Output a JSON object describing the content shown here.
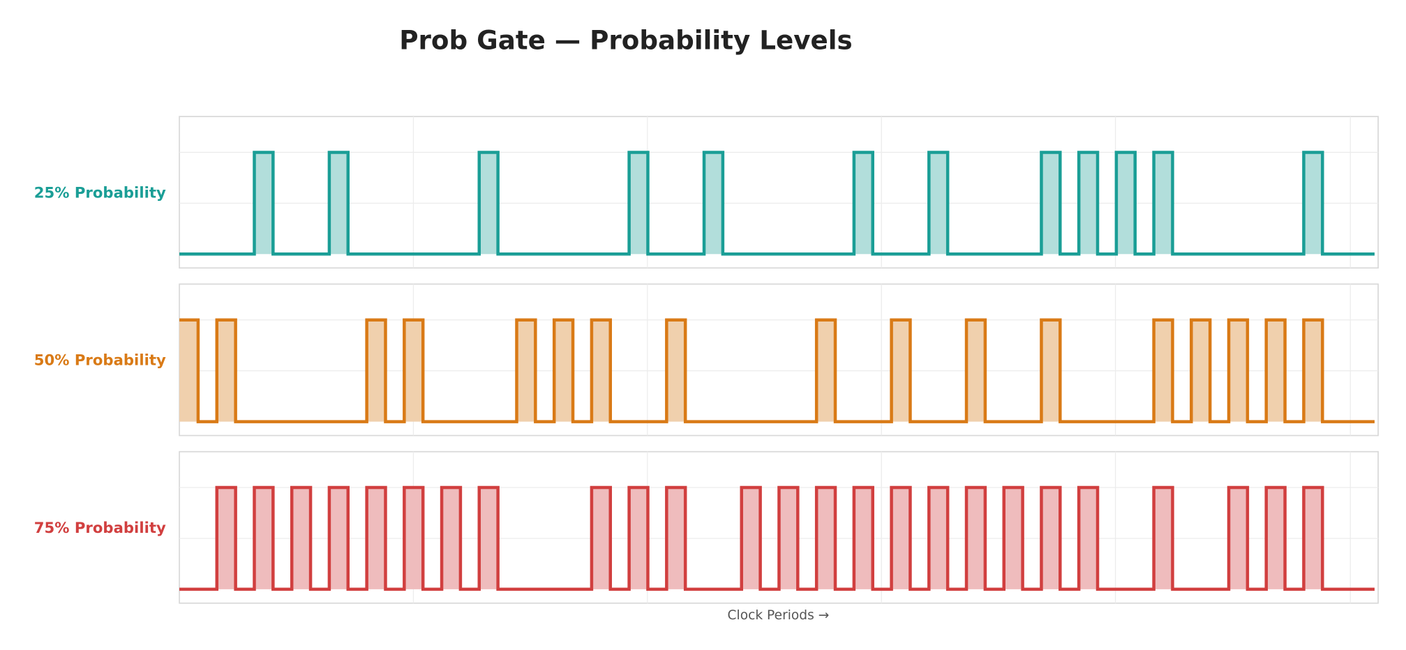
{
  "chart_data": {
    "type": "line",
    "step": true,
    "title": "Prob Gate — Probability Levels",
    "xlabel": "Clock Periods →",
    "periods": 32,
    "grid": true,
    "series": [
      {
        "name": "25% Probability",
        "color": "#1a9e96",
        "fill": "#b2dedb",
        "values": [
          0,
          0,
          1,
          0,
          1,
          0,
          0,
          0,
          1,
          0,
          0,
          0,
          1,
          0,
          1,
          0,
          0,
          0,
          1,
          0,
          1,
          0,
          0,
          1,
          1,
          1,
          1,
          0,
          0,
          0,
          1,
          0
        ]
      },
      {
        "name": "50% Probability",
        "color": "#d97a16",
        "fill": "#f0d0ad",
        "values": [
          1,
          1,
          0,
          0,
          0,
          1,
          1,
          0,
          0,
          1,
          1,
          1,
          0,
          1,
          0,
          0,
          0,
          1,
          0,
          1,
          0,
          1,
          0,
          1,
          0,
          0,
          1,
          1,
          1,
          1,
          1,
          0
        ]
      },
      {
        "name": "75% Probability",
        "color": "#d13f3f",
        "fill": "#efbcbd",
        "values": [
          0,
          1,
          1,
          1,
          1,
          1,
          1,
          1,
          1,
          0,
          0,
          1,
          1,
          1,
          0,
          1,
          1,
          1,
          1,
          1,
          1,
          1,
          1,
          1,
          1,
          0,
          1,
          0,
          1,
          1,
          1,
          0
        ]
      }
    ]
  }
}
